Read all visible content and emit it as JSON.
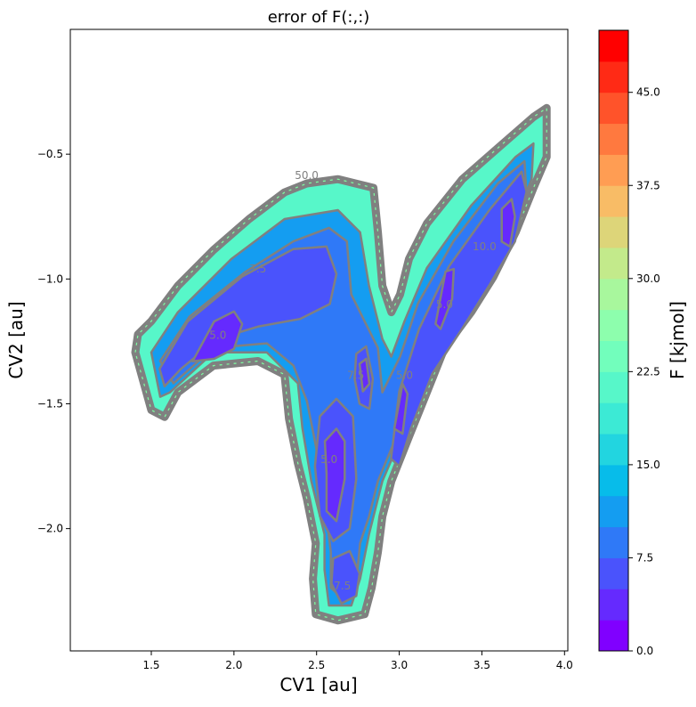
{
  "chart_data": {
    "type": "contour",
    "title": "error of F(:,:)",
    "xlabel": "CV1 [au]",
    "ylabel": "CV2 [au]",
    "xlim": [
      1.01,
      4.02
    ],
    "ylim": [
      -2.49,
      0.0
    ],
    "xticks": [
      1.5,
      2.0,
      2.5,
      3.0,
      3.5,
      4.0
    ],
    "xtick_labels": [
      "1.5",
      "2.0",
      "2.5",
      "3.0",
      "3.5",
      "4.0"
    ],
    "yticks": [
      -0.5,
      -1.0,
      -1.5,
      -2.0
    ],
    "ytick_labels": [
      "−0.5",
      "−1.0",
      "−1.5",
      "−2.0"
    ],
    "grid": false,
    "colormap": "rainbow",
    "contour_line_color": "#808080",
    "colorbar": {
      "label": "F [kjmol]",
      "levels_min": 0.0,
      "levels_max": 50.0,
      "level_step": 2.5,
      "ticks": [
        0.0,
        7.5,
        15.0,
        22.5,
        30.0,
        37.5,
        45.0
      ],
      "tick_labels": [
        "0.0",
        "7.5",
        "15.0",
        "22.5",
        "30.0",
        "37.5",
        "45.0"
      ]
    },
    "regions": [
      {
        "level": 20.0,
        "points": [
          [
            1.403,
            -1.294
          ],
          [
            1.419,
            -1.222
          ],
          [
            1.5,
            -1.169
          ],
          [
            1.661,
            -1.027
          ],
          [
            1.876,
            -0.884
          ],
          [
            2.091,
            -0.76
          ],
          [
            2.306,
            -0.653
          ],
          [
            2.441,
            -0.617
          ],
          [
            2.629,
            -0.6
          ],
          [
            2.844,
            -0.635
          ],
          [
            2.871,
            -0.813
          ],
          [
            2.898,
            -1.027
          ],
          [
            2.952,
            -1.133
          ],
          [
            3.005,
            -1.062
          ],
          [
            3.059,
            -0.92
          ],
          [
            3.167,
            -0.778
          ],
          [
            3.382,
            -0.6
          ],
          [
            3.597,
            -0.475
          ],
          [
            3.812,
            -0.351
          ],
          [
            3.892,
            -0.315
          ],
          [
            3.892,
            -0.511
          ],
          [
            3.812,
            -0.635
          ],
          [
            3.704,
            -0.813
          ],
          [
            3.57,
            -0.991
          ],
          [
            3.435,
            -1.133
          ],
          [
            3.274,
            -1.276
          ],
          [
            3.167,
            -1.454
          ],
          [
            3.059,
            -1.632
          ],
          [
            2.952,
            -1.81
          ],
          [
            2.898,
            -1.952
          ],
          [
            2.871,
            -2.094
          ],
          [
            2.833,
            -2.237
          ],
          [
            2.79,
            -2.343
          ],
          [
            2.629,
            -2.368
          ],
          [
            2.495,
            -2.343
          ],
          [
            2.478,
            -2.201
          ],
          [
            2.495,
            -2.059
          ],
          [
            2.441,
            -1.881
          ],
          [
            2.387,
            -1.738
          ],
          [
            2.333,
            -1.56
          ],
          [
            2.306,
            -1.383
          ],
          [
            2.145,
            -1.329
          ],
          [
            1.876,
            -1.347
          ],
          [
            1.661,
            -1.454
          ],
          [
            1.581,
            -1.553
          ],
          [
            1.5,
            -1.525
          ]
        ]
      },
      {
        "level": 10.0,
        "points": [
          [
            1.5,
            -1.294
          ],
          [
            1.661,
            -1.133
          ],
          [
            1.984,
            -0.92
          ],
          [
            2.306,
            -0.76
          ],
          [
            2.629,
            -0.724
          ],
          [
            2.763,
            -0.813
          ],
          [
            2.817,
            -1.027
          ],
          [
            2.898,
            -1.24
          ],
          [
            2.952,
            -1.311
          ],
          [
            3.032,
            -1.169
          ],
          [
            3.167,
            -0.956
          ],
          [
            3.435,
            -0.706
          ],
          [
            3.704,
            -0.511
          ],
          [
            3.812,
            -0.457
          ],
          [
            3.801,
            -0.6
          ],
          [
            3.651,
            -0.849
          ],
          [
            3.435,
            -1.062
          ],
          [
            3.22,
            -1.311
          ],
          [
            3.059,
            -1.56
          ],
          [
            2.898,
            -1.81
          ],
          [
            2.817,
            -2.023
          ],
          [
            2.763,
            -2.201
          ],
          [
            2.71,
            -2.308
          ],
          [
            2.575,
            -2.308
          ],
          [
            2.548,
            -2.165
          ],
          [
            2.548,
            -2.023
          ],
          [
            2.468,
            -1.81
          ],
          [
            2.414,
            -1.596
          ],
          [
            2.387,
            -1.418
          ],
          [
            2.199,
            -1.294
          ],
          [
            1.876,
            -1.294
          ],
          [
            1.613,
            -1.454
          ],
          [
            1.554,
            -1.472
          ]
        ]
      },
      {
        "level": 7.5,
        "points": [
          [
            1.554,
            -1.329
          ],
          [
            1.731,
            -1.151
          ],
          [
            2.065,
            -0.973
          ],
          [
            2.36,
            -0.849
          ],
          [
            2.575,
            -0.795
          ],
          [
            2.683,
            -0.849
          ],
          [
            2.71,
            -1.062
          ],
          [
            2.79,
            -1.169
          ],
          [
            2.871,
            -1.276
          ],
          [
            2.898,
            -1.454
          ],
          [
            3.005,
            -1.311
          ],
          [
            3.113,
            -1.098
          ],
          [
            3.328,
            -0.849
          ],
          [
            3.597,
            -0.617
          ],
          [
            3.758,
            -0.528
          ],
          [
            3.769,
            -0.653
          ],
          [
            3.597,
            -0.92
          ],
          [
            3.355,
            -1.169
          ],
          [
            3.167,
            -1.383
          ],
          [
            3.005,
            -1.596
          ],
          [
            2.871,
            -1.81
          ],
          [
            2.817,
            -1.952
          ],
          [
            2.763,
            -2.059
          ],
          [
            2.737,
            -2.237
          ],
          [
            2.656,
            -2.279
          ],
          [
            2.586,
            -2.237
          ],
          [
            2.586,
            -2.094
          ],
          [
            2.548,
            -1.881
          ],
          [
            2.495,
            -1.667
          ],
          [
            2.441,
            -1.489
          ],
          [
            2.36,
            -1.347
          ],
          [
            2.199,
            -1.258
          ],
          [
            1.876,
            -1.276
          ],
          [
            1.634,
            -1.418
          ]
        ]
      },
      {
        "level": 5.0,
        "points": [
          [
            1.55,
            -1.36
          ],
          [
            1.72,
            -1.17
          ],
          [
            2.05,
            -0.99
          ],
          [
            2.36,
            -0.88
          ],
          [
            2.56,
            -0.87
          ],
          [
            2.62,
            -0.98
          ],
          [
            2.58,
            -1.1
          ],
          [
            2.4,
            -1.16
          ],
          [
            2.15,
            -1.19
          ],
          [
            1.9,
            -1.24
          ],
          [
            1.68,
            -1.36
          ],
          [
            1.58,
            -1.43
          ]
        ]
      },
      {
        "level": 5.0,
        "points": [
          [
            2.52,
            -1.55
          ],
          [
            2.62,
            -1.48
          ],
          [
            2.72,
            -1.55
          ],
          [
            2.74,
            -1.8
          ],
          [
            2.7,
            -2.0
          ],
          [
            2.6,
            -2.05
          ],
          [
            2.52,
            -1.95
          ],
          [
            2.49,
            -1.75
          ]
        ]
      },
      {
        "level": 5.0,
        "points": [
          [
            2.74,
            -1.3
          ],
          [
            2.8,
            -1.27
          ],
          [
            2.84,
            -1.4
          ],
          [
            2.82,
            -1.52
          ],
          [
            2.76,
            -1.5
          ],
          [
            2.73,
            -1.4
          ]
        ]
      },
      {
        "level": 5.0,
        "points": [
          [
            2.95,
            -1.72
          ],
          [
            3.0,
            -1.45
          ],
          [
            3.12,
            -1.2
          ],
          [
            3.3,
            -0.95
          ],
          [
            3.55,
            -0.72
          ],
          [
            3.74,
            -0.57
          ],
          [
            3.77,
            -0.65
          ],
          [
            3.7,
            -0.85
          ],
          [
            3.55,
            -1.02
          ],
          [
            3.38,
            -1.2
          ],
          [
            3.2,
            -1.38
          ],
          [
            3.07,
            -1.6
          ],
          [
            3.0,
            -1.75
          ]
        ]
      },
      {
        "level": 5.0,
        "points": [
          [
            2.6,
            -2.12
          ],
          [
            2.7,
            -2.09
          ],
          [
            2.76,
            -2.18
          ],
          [
            2.74,
            -2.27
          ],
          [
            2.65,
            -2.3
          ],
          [
            2.59,
            -2.22
          ]
        ]
      },
      {
        "level": 2.5,
        "points": [
          [
            1.75,
            -1.33
          ],
          [
            1.88,
            -1.17
          ],
          [
            2.0,
            -1.13
          ],
          [
            2.05,
            -1.18
          ],
          [
            2.0,
            -1.28
          ],
          [
            1.88,
            -1.32
          ]
        ]
      },
      {
        "level": 2.5,
        "points": [
          [
            2.55,
            -1.65
          ],
          [
            2.62,
            -1.6
          ],
          [
            2.67,
            -1.65
          ],
          [
            2.67,
            -1.8
          ],
          [
            2.62,
            -1.97
          ],
          [
            2.56,
            -1.93
          ],
          [
            2.56,
            -1.78
          ]
        ]
      },
      {
        "level": 2.5,
        "points": [
          [
            3.62,
            -0.85
          ],
          [
            3.62,
            -0.72
          ],
          [
            3.68,
            -0.68
          ],
          [
            3.7,
            -0.75
          ],
          [
            3.67,
            -0.87
          ]
        ]
      },
      {
        "level": 2.5,
        "points": [
          [
            3.22,
            -1.18
          ],
          [
            3.28,
            -0.97
          ],
          [
            3.33,
            -0.96
          ],
          [
            3.32,
            -1.08
          ],
          [
            3.25,
            -1.2
          ]
        ]
      },
      {
        "level": 2.5,
        "points": [
          [
            2.97,
            -1.6
          ],
          [
            3.02,
            -1.42
          ],
          [
            3.05,
            -1.46
          ],
          [
            3.02,
            -1.62
          ]
        ]
      },
      {
        "level": 2.5,
        "points": [
          [
            2.76,
            -1.34
          ],
          [
            2.8,
            -1.32
          ],
          [
            2.82,
            -1.42
          ],
          [
            2.78,
            -1.45
          ]
        ]
      }
    ],
    "contour_labels": [
      {
        "text": "50.0",
        "x": 2.44,
        "y": -0.6
      },
      {
        "text": "7.5",
        "x": 2.145,
        "y": -0.973
      },
      {
        "text": "5.0",
        "x": 1.903,
        "y": -1.24
      },
      {
        "text": "7.5",
        "x": 2.737,
        "y": -1.4
      },
      {
        "text": "5.0",
        "x": 2.575,
        "y": -1.738
      },
      {
        "text": "5.0",
        "x": 3.274,
        "y": -1.116
      },
      {
        "text": "5.0",
        "x": 3.032,
        "y": -1.4
      },
      {
        "text": "10.0",
        "x": 3.516,
        "y": -0.884
      },
      {
        "text": "7.5",
        "x": 2.656,
        "y": -2.244
      }
    ]
  }
}
